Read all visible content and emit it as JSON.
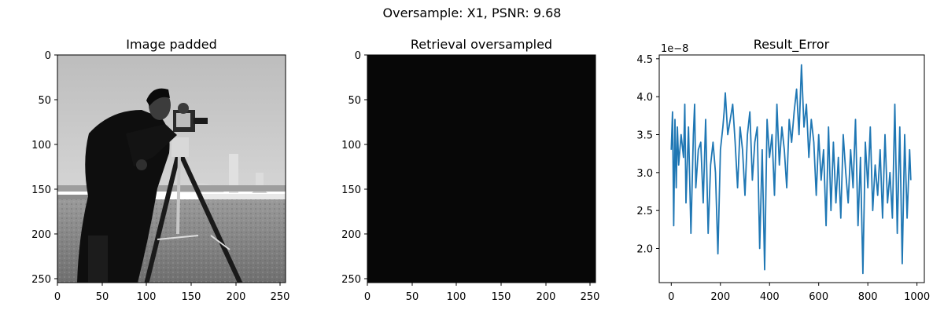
{
  "figure": {
    "suptitle": "Oversample: X1, PSNR: 9.68"
  },
  "panels": [
    {
      "title": "Image padded",
      "xticks": [
        "0",
        "50",
        "100",
        "150",
        "200",
        "250"
      ],
      "yticks": [
        "0",
        "50",
        "100",
        "150",
        "200",
        "250"
      ]
    },
    {
      "title": "Retrieval oversampled",
      "xticks": [
        "0",
        "50",
        "100",
        "150",
        "200",
        "250"
      ],
      "yticks": [
        "0",
        "50",
        "100",
        "150",
        "200",
        "250"
      ]
    },
    {
      "title": "Result_Error",
      "xticks": [
        "0",
        "200",
        "400",
        "600",
        "800",
        "1000"
      ],
      "yticks": [
        "2.0",
        "2.5",
        "3.0",
        "3.5",
        "4.0",
        "4.5"
      ],
      "offset_text": "1e−8"
    }
  ],
  "chart_data": [
    {
      "type": "heatmap",
      "title": "Image padded",
      "content": "grayscale photograph (cameraman)",
      "xlim": [
        0,
        256
      ],
      "ylim": [
        256,
        0
      ],
      "xticks": [
        0,
        50,
        100,
        150,
        200,
        250
      ],
      "yticks": [
        0,
        50,
        100,
        150,
        200,
        250
      ]
    },
    {
      "type": "heatmap",
      "title": "Retrieval oversampled",
      "content": "near-uniform black image",
      "xlim": [
        0,
        256
      ],
      "ylim": [
        256,
        0
      ],
      "xticks": [
        0,
        50,
        100,
        150,
        200,
        250
      ],
      "yticks": [
        0,
        50,
        100,
        150,
        200,
        250
      ]
    },
    {
      "type": "line",
      "title": "Result_Error",
      "color": "#1f77b4",
      "xlim": [
        -49,
        1030
      ],
      "ylim": [
        1.55,
        4.55
      ],
      "y_scale_factor": "1e-8",
      "xticks": [
        0,
        200,
        400,
        600,
        800,
        1000
      ],
      "yticks": [
        2.0,
        2.5,
        3.0,
        3.5,
        4.0,
        4.5
      ],
      "series": [
        {
          "x": [
            0,
            5,
            10,
            15,
            20,
            25,
            30,
            40,
            50,
            55,
            60,
            70,
            80,
            90,
            95,
            100,
            110,
            120,
            130,
            140,
            150,
            160,
            170,
            180,
            190,
            200,
            210,
            215,
            220,
            230,
            240,
            250,
            260,
            270,
            280,
            290,
            300,
            310,
            320,
            330,
            340,
            350,
            360,
            370,
            380,
            390,
            400,
            410,
            420,
            430,
            440,
            450,
            460,
            470,
            480,
            490,
            500,
            510,
            520,
            530,
            540,
            550,
            560,
            570,
            580,
            590,
            600,
            610,
            620,
            630,
            640,
            650,
            660,
            670,
            680,
            690,
            700,
            710,
            720,
            730,
            740,
            750,
            760,
            770,
            780,
            790,
            800,
            810,
            820,
            830,
            840,
            850,
            860,
            870,
            880,
            890,
            900,
            910,
            920,
            930,
            940,
            950,
            960,
            970,
            975
          ],
          "y": [
            3.3,
            3.8,
            2.3,
            3.7,
            2.8,
            3.6,
            3.1,
            3.5,
            3.2,
            3.9,
            2.6,
            3.6,
            2.2,
            3.5,
            3.9,
            2.8,
            3.3,
            3.4,
            2.6,
            3.7,
            2.2,
            3.1,
            3.4,
            3.0,
            1.93,
            3.3,
            3.6,
            3.8,
            4.05,
            3.5,
            3.7,
            3.9,
            3.4,
            2.8,
            3.6,
            3.3,
            2.7,
            3.5,
            3.8,
            2.9,
            3.4,
            3.6,
            2.0,
            3.3,
            1.72,
            3.7,
            3.2,
            3.5,
            2.7,
            3.9,
            3.1,
            3.6,
            3.3,
            2.8,
            3.7,
            3.4,
            3.8,
            4.1,
            3.5,
            4.42,
            3.6,
            3.9,
            3.2,
            3.7,
            3.4,
            2.7,
            3.5,
            2.9,
            3.3,
            2.3,
            3.6,
            2.5,
            3.4,
            2.6,
            3.2,
            2.4,
            3.5,
            3.0,
            2.6,
            3.3,
            2.8,
            3.7,
            2.3,
            3.2,
            1.67,
            3.4,
            2.8,
            3.6,
            2.5,
            3.1,
            2.7,
            3.3,
            2.4,
            3.5,
            2.6,
            3.0,
            2.4,
            3.9,
            2.2,
            3.6,
            1.8,
            3.5,
            2.4,
            3.3,
            2.9
          ]
        }
      ]
    }
  ]
}
